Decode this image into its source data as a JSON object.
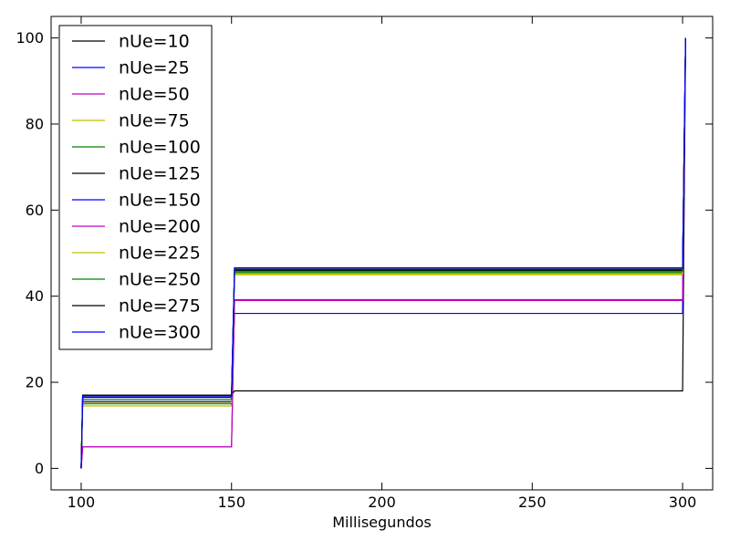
{
  "chart_data": {
    "type": "line",
    "title": "",
    "xlabel": "Millisegundos",
    "ylabel": "",
    "xlim": [
      90,
      310
    ],
    "ylim": [
      -5,
      105
    ],
    "xticks": [
      100,
      150,
      200,
      250,
      300
    ],
    "yticks": [
      0,
      20,
      40,
      60,
      80,
      100
    ],
    "grid": false,
    "legend_position": "top-left",
    "series": [
      {
        "name": "nUe=10",
        "color": "#000000",
        "x": [
          100,
          100.5,
          150,
          151,
          151.3,
          300,
          301
        ],
        "y": [
          0,
          17,
          17,
          18,
          18,
          18,
          100
        ]
      },
      {
        "name": "nUe=25",
        "color": "#0000ff",
        "x": [
          100,
          100.5,
          150,
          151,
          151.3,
          300,
          301
        ],
        "y": [
          0,
          15.5,
          15.5,
          36,
          36,
          36,
          100
        ]
      },
      {
        "name": "nUe=50",
        "color": "#bf00bf",
        "x": [
          100,
          100.5,
          150,
          151,
          151.3,
          300,
          301
        ],
        "y": [
          0,
          5,
          5,
          39,
          39,
          39,
          100
        ]
      },
      {
        "name": "nUe=75",
        "color": "#bfbf00",
        "x": [
          100,
          100.5,
          150,
          151,
          151.3,
          300,
          301
        ],
        "y": [
          0,
          14.5,
          14.5,
          45,
          45,
          45,
          100
        ]
      },
      {
        "name": "nUe=100",
        "color": "#008000",
        "x": [
          100,
          100.5,
          150,
          151,
          151.3,
          300,
          301
        ],
        "y": [
          0,
          15,
          15,
          45.5,
          45.5,
          45.5,
          100
        ]
      },
      {
        "name": "nUe=125",
        "color": "#000000",
        "x": [
          100,
          100.5,
          150,
          151,
          151.3,
          300,
          301
        ],
        "y": [
          0,
          16.5,
          16.5,
          46,
          46,
          46,
          100
        ]
      },
      {
        "name": "nUe=150",
        "color": "#0000ff",
        "x": [
          100,
          100.5,
          150,
          151,
          151.3,
          300,
          301
        ],
        "y": [
          0,
          16,
          16,
          46.2,
          46.2,
          46.2,
          100
        ]
      },
      {
        "name": "nUe=200",
        "color": "#bf00bf",
        "x": [
          100,
          100.5,
          150,
          151,
          151.3,
          300,
          301
        ],
        "y": [
          0,
          5,
          5,
          39.2,
          39.2,
          39.2,
          100
        ]
      },
      {
        "name": "nUe=225",
        "color": "#bfbf00",
        "x": [
          100,
          100.5,
          150,
          151,
          151.3,
          300,
          301
        ],
        "y": [
          0,
          15.2,
          15.2,
          45.2,
          45.2,
          45.2,
          100
        ]
      },
      {
        "name": "nUe=250",
        "color": "#008000",
        "x": [
          100,
          100.5,
          150,
          151,
          151.3,
          300,
          301
        ],
        "y": [
          0,
          16,
          16,
          45.8,
          45.8,
          45.8,
          100
        ]
      },
      {
        "name": "nUe=275",
        "color": "#000000",
        "x": [
          100,
          100.5,
          150,
          151,
          151.3,
          300,
          301
        ],
        "y": [
          0,
          17,
          17,
          46.5,
          46.5,
          46.5,
          100
        ]
      },
      {
        "name": "nUe=300",
        "color": "#0000ff",
        "x": [
          100,
          100.5,
          150,
          151,
          151.3,
          300,
          301
        ],
        "y": [
          0,
          16.8,
          16.8,
          46.6,
          46.6,
          46.6,
          100
        ]
      }
    ]
  }
}
